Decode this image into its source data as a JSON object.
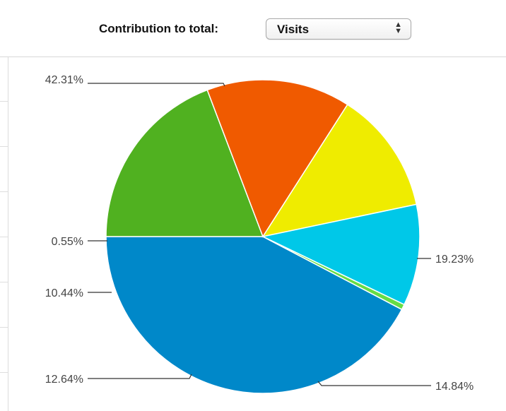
{
  "header": {
    "contribution_label": "Contribution to total:",
    "metric_select": {
      "value": "Visits"
    }
  },
  "chart_data": {
    "type": "pie",
    "title": "",
    "slices": [
      {
        "label": "42.31%",
        "value": 42.31,
        "color": "#0088c9"
      },
      {
        "label": "19.23%",
        "value": 19.23,
        "color": "#50b120"
      },
      {
        "label": "14.84%",
        "value": 14.84,
        "color": "#f05a00"
      },
      {
        "label": "12.64%",
        "value": 12.64,
        "color": "#efec00"
      },
      {
        "label": "10.44%",
        "value": 10.44,
        "color": "#00c8e8"
      },
      {
        "label": "0.55%",
        "value": 0.55,
        "color": "#66dd44"
      }
    ]
  }
}
